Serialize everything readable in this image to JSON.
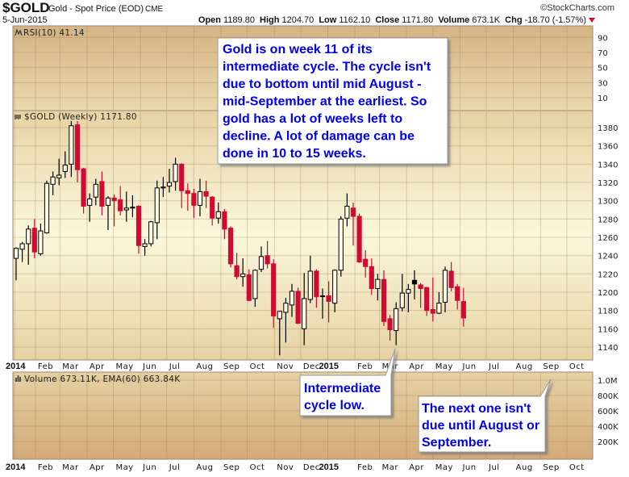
{
  "header": {
    "symbol": "$GOLD",
    "name": "Gold - Spot Price (EOD)",
    "exchange": "CME",
    "copyright": "©StockCharts.com",
    "date": "5-Jun-2015",
    "open_label": "Open",
    "open": "1189.80",
    "high_label": "High",
    "high": "1204.70",
    "low_label": "Low",
    "low": "1162.10",
    "close_label": "Close",
    "close": "1171.80",
    "volume_label": "Volume",
    "volume": "673.1K",
    "chg_label": "Chg",
    "chg": "-18.70 (-1.57%)",
    "chg_direction": "down"
  },
  "colors": {
    "up": "#000000",
    "down": "#d10a33",
    "annotation_text": "#0000ee"
  },
  "chart_data": [
    {
      "type": "line",
      "panel": "rsi",
      "label": "RSI(10) 41.14",
      "yticks": [
        90,
        70,
        50,
        30,
        10
      ],
      "ylim": [
        0,
        100
      ],
      "grid": true
    },
    {
      "type": "candlestick",
      "panel": "price",
      "label": "$GOLD (Weekly) 1171.80",
      "yticks": [
        1380,
        1360,
        1340,
        1320,
        1300,
        1280,
        1260,
        1240,
        1220,
        1200,
        1180,
        1160,
        1140
      ],
      "grid": true,
      "x": [
        "2014-01-10",
        "2014-01-17",
        "2014-01-24",
        "2014-01-31",
        "2014-02-07",
        "2014-02-14",
        "2014-02-21",
        "2014-02-28",
        "2014-03-07",
        "2014-03-14",
        "2014-03-21",
        "2014-03-28",
        "2014-04-04",
        "2014-04-11",
        "2014-04-18",
        "2014-04-25",
        "2014-05-02",
        "2014-05-09",
        "2014-05-16",
        "2014-05-23",
        "2014-05-30",
        "2014-06-06",
        "2014-06-13",
        "2014-06-20",
        "2014-06-27",
        "2014-07-04",
        "2014-07-11",
        "2014-07-18",
        "2014-07-25",
        "2014-08-01",
        "2014-08-08",
        "2014-08-15",
        "2014-08-22",
        "2014-08-29",
        "2014-09-05",
        "2014-09-12",
        "2014-09-19",
        "2014-09-26",
        "2014-10-03",
        "2014-10-10",
        "2014-10-17",
        "2014-10-24",
        "2014-10-31",
        "2014-11-07",
        "2014-11-14",
        "2014-11-21",
        "2014-11-28",
        "2014-12-05",
        "2014-12-12",
        "2014-12-19",
        "2014-12-26",
        "2015-01-02",
        "2015-01-09",
        "2015-01-16",
        "2015-01-23",
        "2015-01-30",
        "2015-02-06",
        "2015-02-13",
        "2015-02-20",
        "2015-02-27",
        "2015-03-06",
        "2015-03-13",
        "2015-03-20",
        "2015-03-27",
        "2015-04-03",
        "2015-04-10",
        "2015-04-17",
        "2015-04-24",
        "2015-05-01",
        "2015-05-08",
        "2015-05-15",
        "2015-05-22",
        "2015-05-29",
        "2015-06-05"
      ],
      "ohlc": [
        [
          1237,
          1249,
          1213,
          1248
        ],
        [
          1247,
          1255,
          1233,
          1253
        ],
        [
          1253,
          1273,
          1230,
          1269
        ],
        [
          1270,
          1280,
          1237,
          1244
        ],
        [
          1242,
          1275,
          1240,
          1267
        ],
        [
          1265,
          1322,
          1264,
          1319
        ],
        [
          1318,
          1332,
          1306,
          1326
        ],
        [
          1325,
          1346,
          1317,
          1328
        ],
        [
          1332,
          1354,
          1325,
          1339
        ],
        [
          1340,
          1387,
          1326,
          1382
        ],
        [
          1383,
          1387,
          1320,
          1334
        ],
        [
          1335,
          1336,
          1286,
          1294
        ],
        [
          1295,
          1308,
          1277,
          1302
        ],
        [
          1304,
          1324,
          1295,
          1318
        ],
        [
          1321,
          1332,
          1284,
          1294
        ],
        [
          1295,
          1305,
          1268,
          1303
        ],
        [
          1303,
          1307,
          1272,
          1300
        ],
        [
          1301,
          1316,
          1284,
          1289
        ],
        [
          1290,
          1310,
          1277,
          1292
        ],
        [
          1292,
          1306,
          1282,
          1293
        ],
        [
          1294,
          1295,
          1242,
          1251
        ],
        [
          1250,
          1258,
          1240,
          1253
        ],
        [
          1253,
          1278,
          1250,
          1277
        ],
        [
          1276,
          1322,
          1258,
          1314
        ],
        [
          1314,
          1326,
          1304,
          1315
        ],
        [
          1316,
          1335,
          1309,
          1320
        ],
        [
          1321,
          1347,
          1311,
          1340
        ],
        [
          1340,
          1341,
          1292,
          1311
        ],
        [
          1311,
          1319,
          1289,
          1308
        ],
        [
          1308,
          1313,
          1281,
          1295
        ],
        [
          1295,
          1324,
          1283,
          1310
        ],
        [
          1310,
          1322,
          1292,
          1305
        ],
        [
          1304,
          1305,
          1273,
          1281
        ],
        [
          1281,
          1298,
          1275,
          1288
        ],
        [
          1288,
          1291,
          1258,
          1269
        ],
        [
          1270,
          1272,
          1227,
          1231
        ],
        [
          1229,
          1243,
          1214,
          1217
        ],
        [
          1217,
          1237,
          1206,
          1220
        ],
        [
          1219,
          1225,
          1190,
          1191
        ],
        [
          1193,
          1225,
          1184,
          1224
        ],
        [
          1225,
          1250,
          1222,
          1239
        ],
        [
          1240,
          1256,
          1226,
          1231
        ],
        [
          1231,
          1236,
          1161,
          1174
        ],
        [
          1171,
          1179,
          1131,
          1179
        ],
        [
          1178,
          1194,
          1145,
          1188
        ],
        [
          1186,
          1209,
          1173,
          1201
        ],
        [
          1201,
          1205,
          1165,
          1166
        ],
        [
          1160,
          1221,
          1142,
          1193
        ],
        [
          1192,
          1240,
          1188,
          1223
        ],
        [
          1223,
          1225,
          1183,
          1195
        ],
        [
          1196,
          1204,
          1171,
          1196
        ],
        [
          1196,
          1212,
          1167,
          1190
        ],
        [
          1188,
          1225,
          1178,
          1224
        ],
        [
          1224,
          1283,
          1217,
          1280
        ],
        [
          1281,
          1308,
          1272,
          1294
        ],
        [
          1292,
          1298,
          1251,
          1283
        ],
        [
          1283,
          1286,
          1232,
          1233
        ],
        [
          1236,
          1246,
          1216,
          1228
        ],
        [
          1228,
          1237,
          1197,
          1204
        ],
        [
          1204,
          1220,
          1191,
          1214
        ],
        [
          1214,
          1224,
          1163,
          1168
        ],
        [
          1171,
          1175,
          1147,
          1159
        ],
        [
          1158,
          1189,
          1142,
          1182
        ],
        [
          1183,
          1220,
          1179,
          1199
        ],
        [
          1199,
          1209,
          1178,
          1203
        ],
        [
          1213,
          1224,
          1192,
          1209
        ],
        [
          1208,
          1210,
          1183,
          1204
        ],
        [
          1205,
          1206,
          1174,
          1180
        ],
        [
          1181,
          1216,
          1168,
          1177
        ],
        [
          1177,
          1200,
          1176,
          1188
        ],
        [
          1189,
          1228,
          1178,
          1224
        ],
        [
          1223,
          1233,
          1201,
          1205
        ],
        [
          1206,
          1209,
          1181,
          1191
        ],
        [
          1189.8,
          1204.7,
          1162.1,
          1171.8
        ]
      ]
    },
    {
      "type": "bar",
      "panel": "volume",
      "label": "Volume 673.11K, EMA(60) 663.84K",
      "yticks": [
        "1.0M",
        "800K",
        "600K",
        "400K",
        "200K"
      ],
      "ytick_values": [
        1000000,
        800000,
        600000,
        400000,
        200000
      ],
      "grid": true
    }
  ],
  "x_axis": {
    "months": [
      {
        "date": "2014-01-01",
        "label": "2014",
        "year": true
      },
      {
        "date": "2014-02-01",
        "label": "Feb"
      },
      {
        "date": "2014-03-01",
        "label": "Mar"
      },
      {
        "date": "2014-04-01",
        "label": "Apr"
      },
      {
        "date": "2014-05-01",
        "label": "May"
      },
      {
        "date": "2014-06-01",
        "label": "Jun"
      },
      {
        "date": "2014-07-01",
        "label": "Jul"
      },
      {
        "date": "2014-08-01",
        "label": "Aug"
      },
      {
        "date": "2014-09-01",
        "label": "Sep"
      },
      {
        "date": "2014-10-01",
        "label": "Oct"
      },
      {
        "date": "2014-11-01",
        "label": "Nov"
      },
      {
        "date": "2014-12-01",
        "label": "Dec"
      },
      {
        "date": "2015-01-01",
        "label": "2015",
        "year": true
      },
      {
        "date": "2015-02-01",
        "label": "Feb"
      },
      {
        "date": "2015-03-01",
        "label": "Mar"
      },
      {
        "date": "2015-04-01",
        "label": "Apr"
      },
      {
        "date": "2015-05-01",
        "label": "May"
      },
      {
        "date": "2015-06-01",
        "label": "Jun"
      },
      {
        "date": "2015-07-01",
        "label": "Jul"
      },
      {
        "date": "2015-08-01",
        "label": "Aug"
      },
      {
        "date": "2015-09-01",
        "label": "Sep"
      },
      {
        "date": "2015-10-01",
        "label": "Oct"
      }
    ]
  },
  "annotations": {
    "cycle_note": [
      "Gold is on week 11 of its",
      "intermediate cycle. The cycle isn't",
      "due to bottom until mid August -",
      "mid-September at the earliest. So",
      "gold has a lot of weeks left to",
      "decline. A lot of damage can be",
      "done in 10 to 15 weeks."
    ],
    "cycle_low": [
      "Intermediate",
      "cycle low."
    ],
    "next_low": [
      "The next one isn't",
      "due until August or",
      "September."
    ]
  }
}
